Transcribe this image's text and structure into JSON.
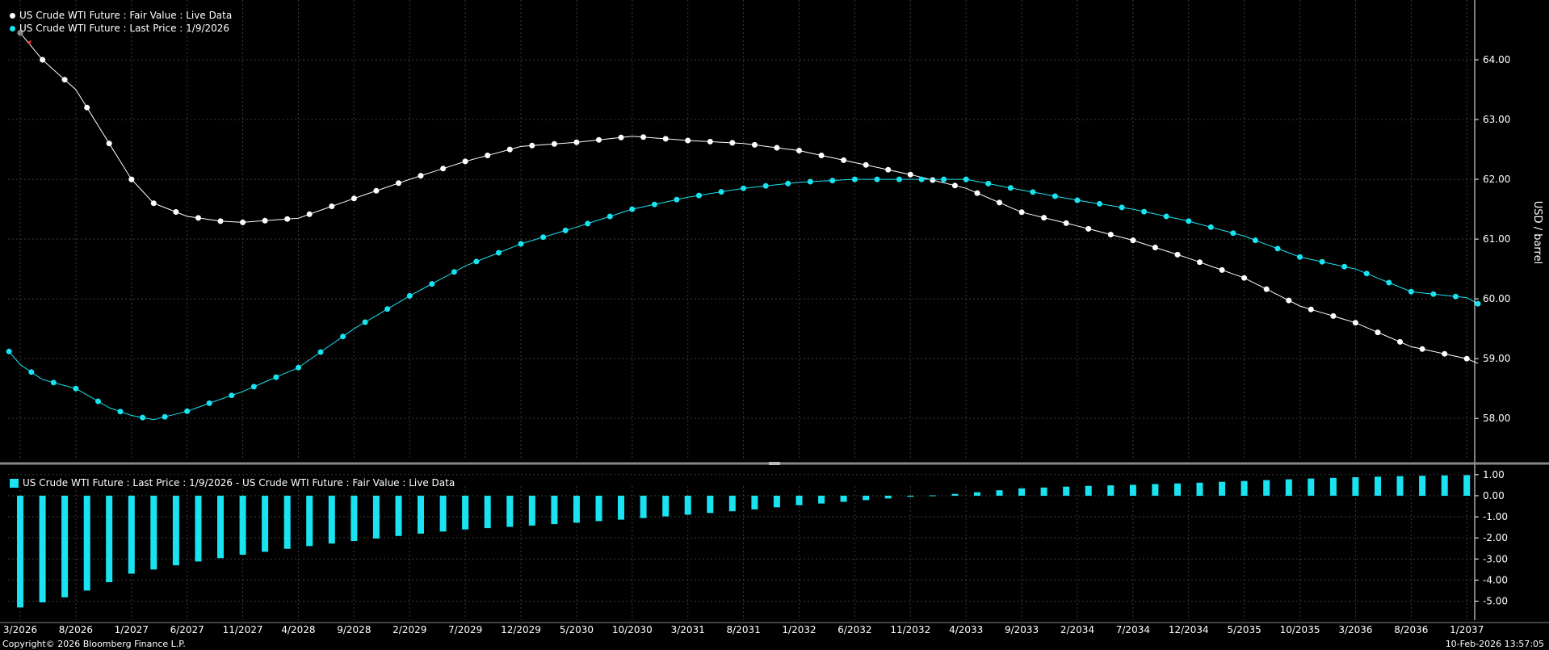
{
  "colors": {
    "background": "#000000",
    "grid": "#3a3a3a",
    "fair_value": "#ffffff",
    "last_price": "#19e3f0",
    "spread_bar": "#19e3f0",
    "first_point_marker": "#ff3b3b"
  },
  "legend": {
    "top": [
      "US Crude WTI Future : Fair Value : Live Data",
      "US Crude WTI Future : Last Price : 1/9/2026"
    ],
    "bottom": "US Crude WTI Future : Last Price : 1/9/2026 - US Crude WTI Future : Fair Value : Live Data"
  },
  "footer": {
    "copyright": "Copyright© 2026 Bloomberg Finance L.P.",
    "timestamp": "10-Feb-2026 13:57:05"
  },
  "chart_data": [
    {
      "type": "line",
      "ylabel": "USD / barrel",
      "ylim": [
        57.3,
        65.0
      ],
      "yticks": [
        "58.00",
        "59.00",
        "60.00",
        "61.00",
        "62.00",
        "63.00",
        "64.00"
      ],
      "x_start": "3/2026",
      "x_end": "2/2037",
      "xticks": [
        "3/2026",
        "8/2026",
        "1/2027",
        "6/2027",
        "11/2027",
        "4/2028",
        "9/2028",
        "2/2029",
        "7/2029",
        "12/2029",
        "5/2030",
        "10/2030",
        "3/2031",
        "8/2031",
        "1/2032",
        "6/2032",
        "11/2032",
        "4/2033",
        "9/2033",
        "2/2034",
        "7/2034",
        "12/2034",
        "5/2035",
        "10/2035",
        "3/2036",
        "8/2036",
        "1/2037"
      ],
      "grid": true,
      "legend_position": "top-left",
      "series": [
        {
          "name": "US Crude WTI Future : Fair Value : Live Data",
          "points": [
            [
              "3/2026",
              64.45
            ],
            [
              "5/2026",
              64.0
            ],
            [
              "8/2026",
              63.5
            ],
            [
              "11/2026",
              62.6
            ],
            [
              "1/2027",
              62.0
            ],
            [
              "3/2027",
              61.6
            ],
            [
              "6/2027",
              61.38
            ],
            [
              "9/2027",
              61.3
            ],
            [
              "11/2027",
              61.28
            ],
            [
              "4/2028",
              61.35
            ],
            [
              "9/2028",
              61.68
            ],
            [
              "2/2029",
              62.0
            ],
            [
              "7/2029",
              62.3
            ],
            [
              "12/2029",
              62.55
            ],
            [
              "5/2030",
              62.62
            ],
            [
              "10/2030",
              62.72
            ],
            [
              "3/2031",
              62.65
            ],
            [
              "8/2031",
              62.6
            ],
            [
              "1/2032",
              62.48
            ],
            [
              "6/2032",
              62.28
            ],
            [
              "11/2032",
              62.08
            ],
            [
              "4/2033",
              61.85
            ],
            [
              "9/2033",
              61.45
            ],
            [
              "2/2034",
              61.22
            ],
            [
              "7/2034",
              60.98
            ],
            [
              "12/2034",
              60.68
            ],
            [
              "5/2035",
              60.35
            ],
            [
              "10/2035",
              59.88
            ],
            [
              "3/2036",
              59.6
            ],
            [
              "8/2036",
              59.2
            ],
            [
              "1/2037",
              59.0
            ],
            [
              "2/2037",
              58.92
            ]
          ]
        },
        {
          "name": "US Crude WTI Future : Last Price : 1/9/2026",
          "points": [
            [
              "2/2026",
              59.12
            ],
            [
              "3/2026",
              58.9
            ],
            [
              "5/2026",
              58.65
            ],
            [
              "8/2026",
              58.5
            ],
            [
              "11/2026",
              58.18
            ],
            [
              "1/2027",
              58.05
            ],
            [
              "3/2027",
              57.98
            ],
            [
              "6/2027",
              58.12
            ],
            [
              "9/2027",
              58.32
            ],
            [
              "11/2027",
              58.45
            ],
            [
              "4/2028",
              58.85
            ],
            [
              "9/2028",
              59.5
            ],
            [
              "2/2029",
              60.05
            ],
            [
              "7/2029",
              60.55
            ],
            [
              "12/2029",
              60.92
            ],
            [
              "5/2030",
              61.2
            ],
            [
              "10/2030",
              61.5
            ],
            [
              "3/2031",
              61.7
            ],
            [
              "8/2031",
              61.85
            ],
            [
              "1/2032",
              61.95
            ],
            [
              "6/2032",
              62.0
            ],
            [
              "11/2032",
              62.0
            ],
            [
              "4/2033",
              62.0
            ],
            [
              "9/2033",
              61.82
            ],
            [
              "2/2034",
              61.65
            ],
            [
              "7/2034",
              61.5
            ],
            [
              "12/2034",
              61.3
            ],
            [
              "5/2035",
              61.05
            ],
            [
              "10/2035",
              60.7
            ],
            [
              "3/2036",
              60.5
            ],
            [
              "8/2036",
              60.12
            ],
            [
              "1/2037",
              60.02
            ],
            [
              "2/2037",
              59.92
            ]
          ]
        }
      ]
    },
    {
      "type": "bar",
      "ylim": [
        -5.9,
        1.3
      ],
      "yticks": [
        "1.00",
        "0.00",
        "-1.00",
        "-2.00",
        "-3.00",
        "-4.00",
        "-5.00"
      ],
      "grid": true,
      "legend_position": "top-left",
      "series": [
        {
          "name": "US Crude WTI Future : Last Price : 1/9/2026 - US Crude WTI Future : Fair Value : Live Data",
          "points": [
            [
              "3/2026",
              -5.3
            ],
            [
              "8/2026",
              -4.7
            ],
            [
              "1/2027",
              -3.7
            ],
            [
              "6/2027",
              -3.2
            ],
            [
              "11/2027",
              -2.8
            ],
            [
              "4/2028",
              -2.45
            ],
            [
              "9/2028",
              -2.15
            ],
            [
              "2/2029",
              -1.85
            ],
            [
              "7/2029",
              -1.6
            ],
            [
              "12/2029",
              -1.45
            ],
            [
              "5/2030",
              -1.28
            ],
            [
              "10/2030",
              -1.1
            ],
            [
              "3/2031",
              -0.9
            ],
            [
              "8/2031",
              -0.7
            ],
            [
              "1/2032",
              -0.45
            ],
            [
              "6/2032",
              -0.25
            ],
            [
              "11/2032",
              -0.05
            ],
            [
              "4/2033",
              0.12
            ],
            [
              "9/2033",
              0.35
            ],
            [
              "2/2034",
              0.45
            ],
            [
              "7/2034",
              0.52
            ],
            [
              "12/2034",
              0.6
            ],
            [
              "5/2035",
              0.7
            ],
            [
              "10/2035",
              0.8
            ],
            [
              "3/2036",
              0.88
            ],
            [
              "8/2036",
              0.94
            ],
            [
              "1/2037",
              0.98
            ],
            [
              "2/2037",
              1.0
            ]
          ]
        }
      ]
    }
  ]
}
